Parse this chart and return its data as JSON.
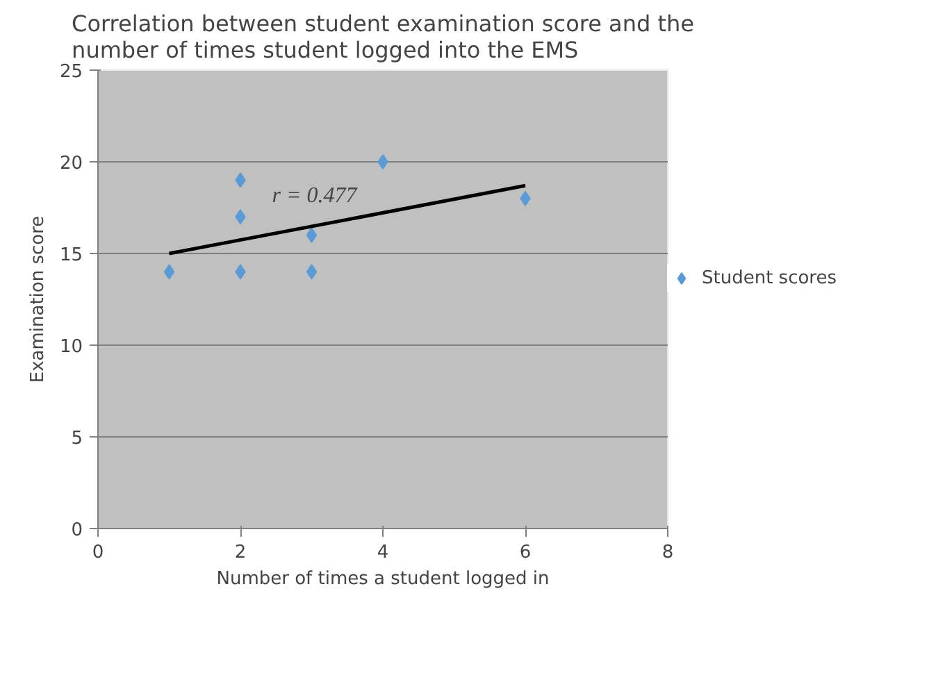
{
  "chart_data": {
    "type": "scatter",
    "title": "Correlation between student examination score and the\nnumber of times student logged into the EMS",
    "xlabel": "Number of times a student logged in",
    "ylabel": "Examination score",
    "xlim": [
      0,
      8
    ],
    "xticks": [
      0,
      2,
      4,
      6,
      8
    ],
    "ylim": [
      0,
      25
    ],
    "yticks": [
      0,
      5,
      10,
      15,
      20,
      25
    ],
    "grid": "y",
    "legend": "right",
    "series": [
      {
        "name": "Student scores",
        "color": "#5b9bd5",
        "marker": "diamond",
        "x": [
          1,
          2,
          2,
          2,
          3,
          3,
          4,
          6
        ],
        "values": [
          14,
          19,
          17,
          14,
          16,
          14,
          20,
          18
        ]
      },
      {
        "type": "line",
        "color": "#000000",
        "x": [
          1,
          6
        ],
        "values": [
          15.0,
          18.7
        ]
      }
    ],
    "annotations": [
      "r = 0.477"
    ]
  }
}
